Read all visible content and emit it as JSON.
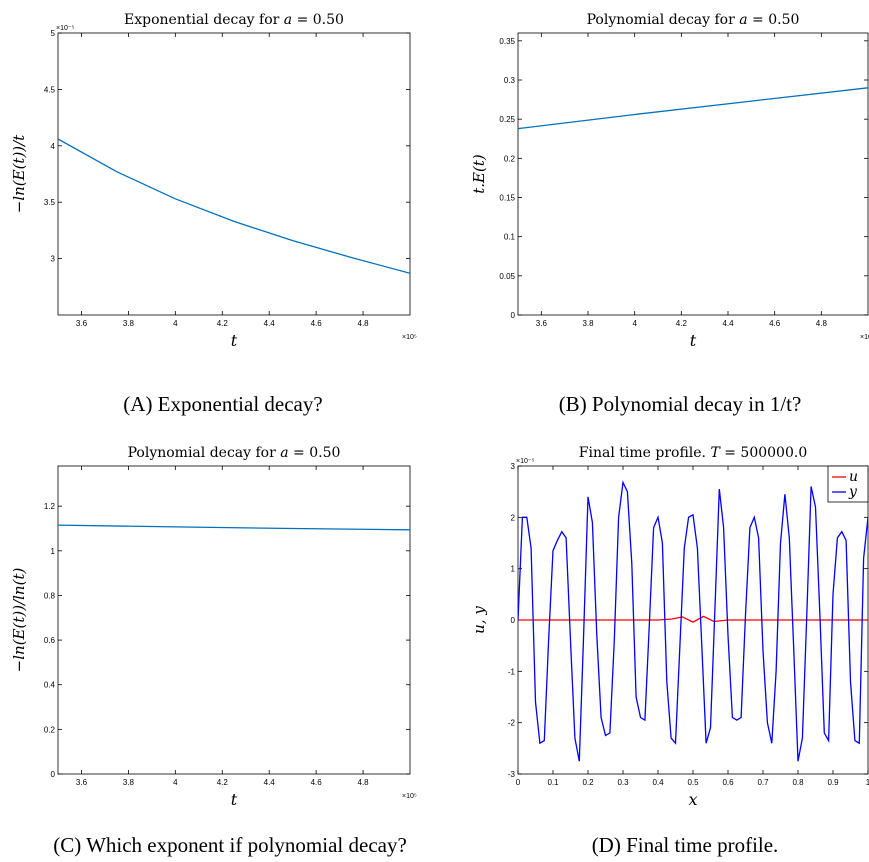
{
  "colors": {
    "axis": "#000000",
    "line_default": "#0072BD",
    "u_line": "#FF0000",
    "y_line": "#0000FF"
  },
  "chart_data": [
    {
      "id": "A",
      "type": "line",
      "title": "Exponential decay for a = 0.50",
      "title_parts": [
        "Exponential decay for ",
        "a",
        " = 0.50"
      ],
      "xlabel": "t",
      "ylabel": "−ln(E(t))/t",
      "x_exponent": "×10⁵",
      "y_exponent": "×10⁻⁵",
      "xlim": [
        3.5,
        5.0
      ],
      "ylim": [
        2.5,
        5.0
      ],
      "xticks": [
        3.6,
        3.8,
        4.0,
        4.2,
        4.4,
        4.6,
        4.8
      ],
      "xtick_labels": [
        "3.6",
        "3.8",
        "4",
        "4.2",
        "4.4",
        "4.6",
        "4.8"
      ],
      "yticks": [
        3.0,
        3.5,
        4.0,
        4.5,
        5.0
      ],
      "ytick_labels": [
        "3",
        "3.5",
        "4",
        "4.5",
        "5"
      ],
      "series": [
        {
          "color": "#0072BD",
          "x": [
            3.5,
            3.75,
            4.0,
            4.25,
            4.5,
            4.75,
            5.0
          ],
          "y": [
            4.06,
            3.77,
            3.53,
            3.33,
            3.16,
            3.01,
            2.87
          ]
        }
      ],
      "caption": "(A) Exponential decay?"
    },
    {
      "id": "B",
      "type": "line",
      "title": "Polynomial decay for a = 0.50",
      "title_parts": [
        "Polynomial decay for ",
        "a",
        " = 0.50"
      ],
      "xlabel": "t",
      "ylabel": "t.E(t)",
      "x_exponent": "×10⁵",
      "y_exponent": "",
      "xlim": [
        3.5,
        5.0
      ],
      "ylim": [
        0,
        0.36
      ],
      "xticks": [
        3.6,
        3.8,
        4.0,
        4.2,
        4.4,
        4.6,
        4.8
      ],
      "xtick_labels": [
        "3.6",
        "3.8",
        "4",
        "4.2",
        "4.4",
        "4.6",
        "4.8"
      ],
      "yticks": [
        0,
        0.05,
        0.1,
        0.15,
        0.2,
        0.25,
        0.3,
        0.35
      ],
      "ytick_labels": [
        "0",
        "0.05",
        "0.1",
        "0.15",
        "0.2",
        "0.25",
        "0.3",
        "0.35"
      ],
      "series": [
        {
          "color": "#0072BD",
          "x": [
            3.5,
            4.0,
            4.5,
            5.0
          ],
          "y": [
            0.238,
            0.256,
            0.273,
            0.29
          ]
        }
      ],
      "caption": "(B) Polynomial decay in 1/t?"
    },
    {
      "id": "C",
      "type": "line",
      "title": "Polynomial decay for a = 0.50",
      "title_parts": [
        "Polynomial decay for ",
        "a",
        " = 0.50"
      ],
      "xlabel": "t",
      "ylabel": "−ln(E(t))/ln(t)",
      "x_exponent": "×10⁵",
      "y_exponent": "",
      "xlim": [
        3.5,
        5.0
      ],
      "ylim": [
        0,
        1.38
      ],
      "xticks": [
        3.6,
        3.8,
        4.0,
        4.2,
        4.4,
        4.6,
        4.8
      ],
      "xtick_labels": [
        "3.6",
        "3.8",
        "4",
        "4.2",
        "4.4",
        "4.6",
        "4.8"
      ],
      "yticks": [
        0,
        0.2,
        0.4,
        0.6,
        0.8,
        1.0,
        1.2
      ],
      "ytick_labels": [
        "0",
        "0.2",
        "0.4",
        "0.6",
        "0.8",
        "1",
        "1.2"
      ],
      "series": [
        {
          "color": "#0072BD",
          "x": [
            3.5,
            4.0,
            4.5,
            5.0
          ],
          "y": [
            1.115,
            1.107,
            1.1,
            1.094
          ]
        }
      ],
      "caption": "(C) Which exponent if polynomial decay?"
    },
    {
      "id": "D",
      "type": "line",
      "title": "Final time profile. T = 500000.0",
      "title_parts": [
        "Final time profile. ",
        "T",
        " = 500000.0"
      ],
      "xlabel": "x",
      "ylabel": "u, y",
      "x_exponent": "",
      "y_exponent": "×10⁻⁵",
      "xlim": [
        0,
        1
      ],
      "ylim": [
        -3,
        3
      ],
      "xticks": [
        0,
        0.1,
        0.2,
        0.3,
        0.4,
        0.5,
        0.6,
        0.7,
        0.8,
        0.9,
        1
      ],
      "xtick_labels": [
        "0",
        "0.1",
        "0.2",
        "0.3",
        "0.4",
        "0.5",
        "0.6",
        "0.7",
        "0.8",
        "0.9",
        "1"
      ],
      "yticks": [
        -3,
        -2,
        -1,
        0,
        1,
        2,
        3
      ],
      "ytick_labels": [
        "-3",
        "-2",
        "-1",
        "0",
        "1",
        "2",
        "3"
      ],
      "legend": {
        "placement": "top-right",
        "entries": [
          "u",
          "y"
        ]
      },
      "series": [
        {
          "name": "u",
          "color": "#FF0000",
          "x": [
            0,
            0.1,
            0.2,
            0.3,
            0.4,
            0.44,
            0.47,
            0.5,
            0.53,
            0.56,
            0.6,
            0.7,
            0.8,
            0.9,
            1
          ],
          "y": [
            0,
            0,
            0,
            0,
            0,
            0.02,
            0.06,
            -0.04,
            0.07,
            -0.03,
            0,
            0,
            0,
            0,
            0
          ]
        },
        {
          "name": "y",
          "color": "#0000FF",
          "x": [
            0,
            0.0125,
            0.025,
            0.0375,
            0.05,
            0.0625,
            0.075,
            0.0875,
            0.1,
            0.1125,
            0.125,
            0.1375,
            0.15,
            0.1625,
            0.175,
            0.1875,
            0.2,
            0.2125,
            0.225,
            0.2375,
            0.25,
            0.2625,
            0.275,
            0.2875,
            0.3,
            0.3125,
            0.325,
            0.3375,
            0.35,
            0.3625,
            0.375,
            0.3875,
            0.4,
            0.4125,
            0.425,
            0.4375,
            0.45,
            0.4625,
            0.475,
            0.4875,
            0.5,
            0.5125,
            0.525,
            0.5375,
            0.55,
            0.5625,
            0.575,
            0.5875,
            0.6,
            0.6125,
            0.625,
            0.6375,
            0.65,
            0.6625,
            0.675,
            0.6875,
            0.7,
            0.7125,
            0.725,
            0.7375,
            0.75,
            0.7625,
            0.775,
            0.7875,
            0.8,
            0.8125,
            0.825,
            0.8375,
            0.85,
            0.8625,
            0.875,
            0.8875,
            0.9,
            0.9125,
            0.925,
            0.9375,
            0.95,
            0.9625,
            0.975,
            0.9875,
            1
          ],
          "y": [
            0,
            2.0,
            2.0,
            1.4,
            -1.6,
            -2.4,
            -2.35,
            -0.4,
            1.35,
            1.55,
            1.72,
            1.6,
            -0.4,
            -2.3,
            -2.75,
            -0.3,
            2.4,
            1.9,
            -0.3,
            -1.9,
            -2.25,
            -2.2,
            -0.4,
            2.0,
            2.68,
            2.5,
            1.1,
            -1.5,
            -1.9,
            -1.95,
            -0.1,
            1.8,
            2.0,
            1.5,
            -1.2,
            -2.3,
            -2.4,
            -0.5,
            1.4,
            2.0,
            2.05,
            1.4,
            -0.5,
            -2.4,
            -2.1,
            0.2,
            2.55,
            1.8,
            -0.3,
            -1.9,
            -1.95,
            -1.9,
            0.1,
            1.8,
            2.0,
            1.6,
            -0.6,
            -2.0,
            -2.4,
            -1.0,
            1.5,
            2.45,
            1.6,
            -0.5,
            -2.75,
            -2.3,
            0.1,
            2.6,
            2.2,
            0.1,
            -2.2,
            -2.35,
            0.5,
            1.6,
            1.72,
            1.55,
            -1.2,
            -2.35,
            -2.4,
            1.2,
            2.0
          ]
        }
      ],
      "caption": "(D) Final time profile."
    }
  ]
}
